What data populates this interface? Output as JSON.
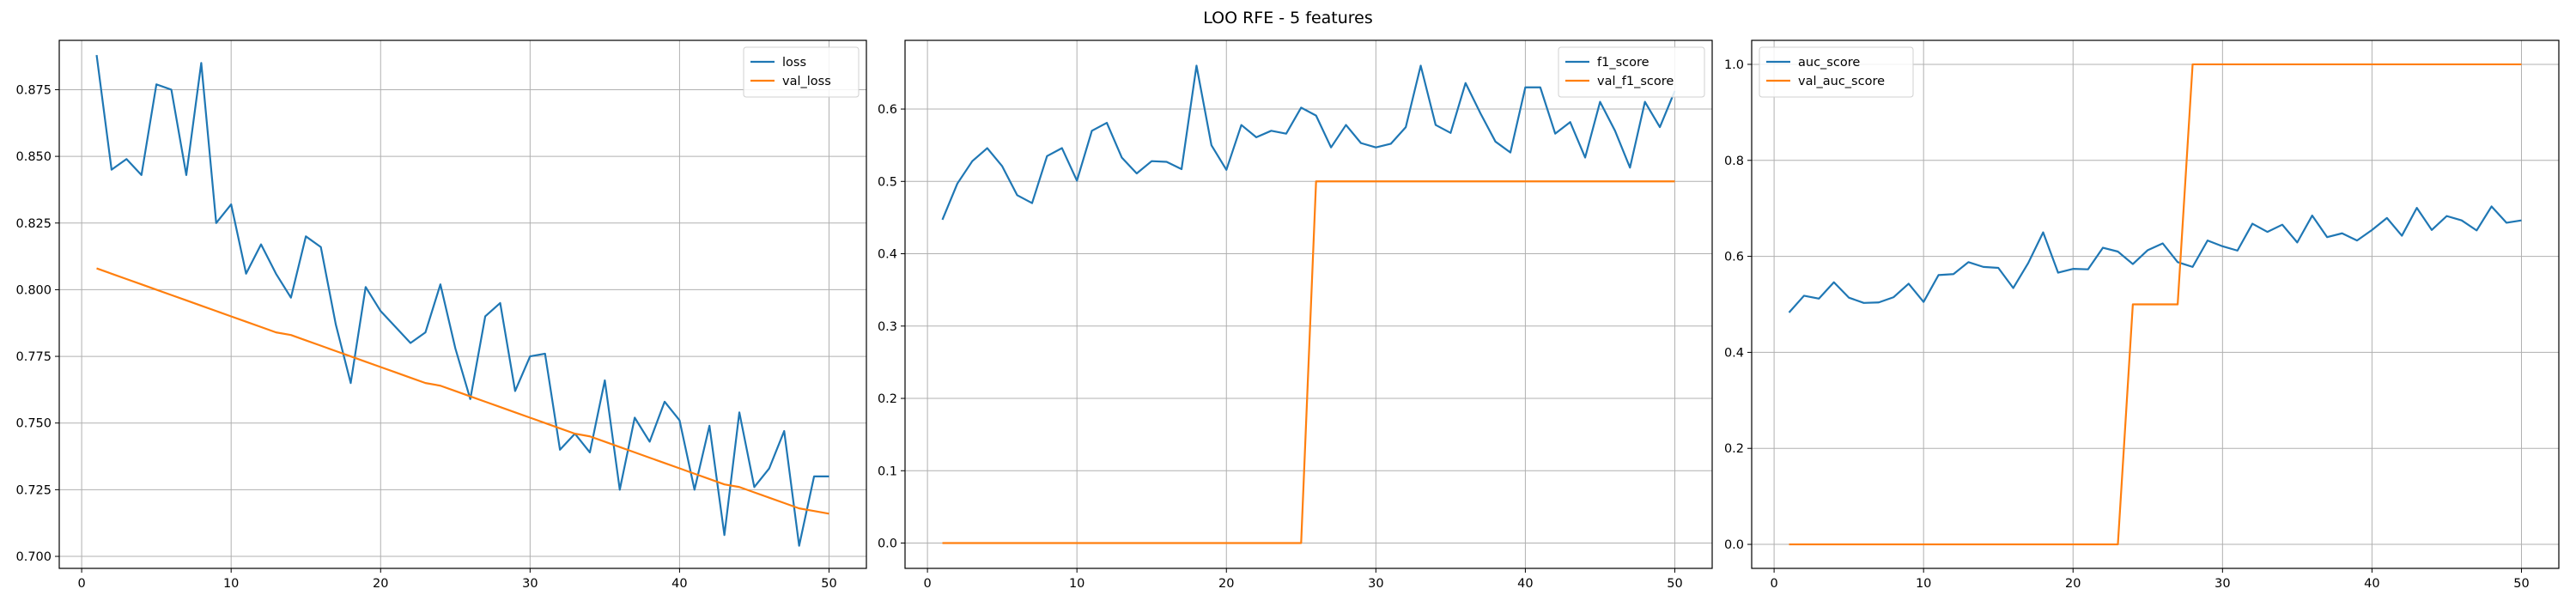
{
  "figure": {
    "title": "LOO RFE - 5 features"
  },
  "chart_data": [
    {
      "type": "line",
      "title": "",
      "xlabel": "",
      "ylabel": "",
      "grid": true,
      "legend_position": "top-right",
      "xlim": [
        -1.5,
        52.5
      ],
      "ylim": [
        0.6955,
        0.8935
      ],
      "xticks": [
        0,
        10,
        20,
        30,
        40,
        50
      ],
      "xtick_labels": [
        "0",
        "10",
        "20",
        "30",
        "40",
        "50"
      ],
      "yticks": [
        0.7,
        0.725,
        0.75,
        0.775,
        0.8,
        0.825,
        0.85,
        0.875
      ],
      "ytick_labels": [
        "0.700",
        "0.725",
        "0.750",
        "0.775",
        "0.800",
        "0.825",
        "0.850",
        "0.875"
      ],
      "x": [
        1,
        2,
        3,
        4,
        5,
        6,
        7,
        8,
        9,
        10,
        11,
        12,
        13,
        14,
        15,
        16,
        17,
        18,
        19,
        20,
        21,
        22,
        23,
        24,
        25,
        26,
        27,
        28,
        29,
        30,
        31,
        32,
        33,
        34,
        35,
        36,
        37,
        38,
        39,
        40,
        41,
        42,
        43,
        44,
        45,
        46,
        47,
        48,
        49,
        50
      ],
      "series": [
        {
          "name": "loss",
          "color": "#1f77b4",
          "values": [
            0.888,
            0.845,
            0.849,
            0.843,
            0.877,
            0.875,
            0.843,
            0.885,
            0.825,
            0.832,
            0.806,
            0.817,
            0.806,
            0.797,
            0.82,
            0.816,
            0.787,
            0.765,
            0.801,
            0.792,
            0.786,
            0.78,
            0.784,
            0.802,
            0.778,
            0.759,
            0.79,
            0.795,
            0.762,
            0.775,
            0.776,
            0.74,
            0.746,
            0.739,
            0.766,
            0.725,
            0.752,
            0.743,
            0.758,
            0.751,
            0.725,
            0.749,
            0.708,
            0.754,
            0.726,
            0.733,
            0.747,
            0.704,
            0.73,
            0.73
          ]
        },
        {
          "name": "val_loss",
          "color": "#ff7f0e",
          "values": [
            0.808,
            0.806,
            0.804,
            0.802,
            0.8,
            0.798,
            0.796,
            0.794,
            0.792,
            0.79,
            0.788,
            0.786,
            0.784,
            0.783,
            0.781,
            0.779,
            0.777,
            0.775,
            0.773,
            0.771,
            0.769,
            0.767,
            0.765,
            0.764,
            0.762,
            0.76,
            0.758,
            0.756,
            0.754,
            0.752,
            0.75,
            0.748,
            0.746,
            0.745,
            0.743,
            0.741,
            0.739,
            0.737,
            0.735,
            0.733,
            0.731,
            0.729,
            0.727,
            0.726,
            0.724,
            0.722,
            0.72,
            0.718,
            0.717,
            0.716
          ]
        }
      ]
    },
    {
      "type": "line",
      "title": "",
      "xlabel": "",
      "ylabel": "",
      "grid": true,
      "legend_position": "top-right",
      "xlim": [
        -1.5,
        52.5
      ],
      "ylim": [
        -0.035,
        0.695
      ],
      "xticks": [
        0,
        10,
        20,
        30,
        40,
        50
      ],
      "xtick_labels": [
        "0",
        "10",
        "20",
        "30",
        "40",
        "50"
      ],
      "yticks": [
        0.0,
        0.1,
        0.2,
        0.3,
        0.4,
        0.5,
        0.6
      ],
      "ytick_labels": [
        "0.0",
        "0.1",
        "0.2",
        "0.3",
        "0.4",
        "0.5",
        "0.6"
      ],
      "x": [
        1,
        2,
        3,
        4,
        5,
        6,
        7,
        8,
        9,
        10,
        11,
        12,
        13,
        14,
        15,
        16,
        17,
        18,
        19,
        20,
        21,
        22,
        23,
        24,
        25,
        26,
        27,
        28,
        29,
        30,
        31,
        32,
        33,
        34,
        35,
        36,
        37,
        38,
        39,
        40,
        41,
        42,
        43,
        44,
        45,
        46,
        47,
        48,
        49,
        50
      ],
      "series": [
        {
          "name": "f1_score",
          "color": "#1f77b4",
          "values": [
            0.447,
            0.497,
            0.528,
            0.546,
            0.521,
            0.481,
            0.47,
            0.535,
            0.546,
            0.501,
            0.57,
            0.581,
            0.533,
            0.511,
            0.528,
            0.527,
            0.517,
            0.66,
            0.55,
            0.516,
            0.578,
            0.561,
            0.57,
            0.566,
            0.602,
            0.591,
            0.547,
            0.578,
            0.553,
            0.547,
            0.552,
            0.575,
            0.66,
            0.578,
            0.567,
            0.636,
            0.594,
            0.555,
            0.54,
            0.63,
            0.63,
            0.566,
            0.582,
            0.533,
            0.61,
            0.57,
            0.519,
            0.61,
            0.575,
            0.625
          ]
        },
        {
          "name": "val_f1_score",
          "color": "#ff7f0e",
          "values": [
            0,
            0,
            0,
            0,
            0,
            0,
            0,
            0,
            0,
            0,
            0,
            0,
            0,
            0,
            0,
            0,
            0,
            0,
            0,
            0,
            0,
            0,
            0,
            0,
            0,
            0.5,
            0.5,
            0.5,
            0.5,
            0.5,
            0.5,
            0.5,
            0.5,
            0.5,
            0.5,
            0.5,
            0.5,
            0.5,
            0.5,
            0.5,
            0.5,
            0.5,
            0.5,
            0.5,
            0.5,
            0.5,
            0.5,
            0.5,
            0.5,
            0.5
          ]
        }
      ]
    },
    {
      "type": "line",
      "title": "",
      "xlabel": "",
      "ylabel": "",
      "grid": true,
      "legend_position": "top-left",
      "xlim": [
        -1.5,
        52.5
      ],
      "ylim": [
        -0.05,
        1.05
      ],
      "xticks": [
        0,
        10,
        20,
        30,
        40,
        50
      ],
      "xtick_labels": [
        "0",
        "10",
        "20",
        "30",
        "40",
        "50"
      ],
      "yticks": [
        0.0,
        0.2,
        0.4,
        0.6,
        0.8,
        1.0
      ],
      "ytick_labels": [
        "0.0",
        "0.2",
        "0.4",
        "0.6",
        "0.8",
        "1.0"
      ],
      "x": [
        1,
        2,
        3,
        4,
        5,
        6,
        7,
        8,
        9,
        10,
        11,
        12,
        13,
        14,
        15,
        16,
        17,
        18,
        19,
        20,
        21,
        22,
        23,
        24,
        25,
        26,
        27,
        28,
        29,
        30,
        31,
        32,
        33,
        34,
        35,
        36,
        37,
        38,
        39,
        40,
        41,
        42,
        43,
        44,
        45,
        46,
        47,
        48,
        49,
        50
      ],
      "series": [
        {
          "name": "auc_score",
          "color": "#1f77b4",
          "values": [
            0.483,
            0.518,
            0.512,
            0.546,
            0.514,
            0.503,
            0.504,
            0.515,
            0.543,
            0.505,
            0.561,
            0.563,
            0.588,
            0.578,
            0.576,
            0.534,
            0.586,
            0.65,
            0.566,
            0.574,
            0.573,
            0.618,
            0.61,
            0.584,
            0.613,
            0.627,
            0.588,
            0.578,
            0.633,
            0.621,
            0.612,
            0.668,
            0.651,
            0.666,
            0.629,
            0.685,
            0.64,
            0.648,
            0.633,
            0.655,
            0.68,
            0.643,
            0.701,
            0.655,
            0.684,
            0.675,
            0.654,
            0.704,
            0.67,
            0.675
          ]
        },
        {
          "name": "val_auc_score",
          "color": "#ff7f0e",
          "values": [
            0,
            0,
            0,
            0,
            0,
            0,
            0,
            0,
            0,
            0,
            0,
            0,
            0,
            0,
            0,
            0,
            0,
            0,
            0,
            0,
            0,
            0,
            0,
            0.5,
            0.5,
            0.5,
            0.5,
            1,
            1,
            1,
            1,
            1,
            1,
            1,
            1,
            1,
            1,
            1,
            1,
            1,
            1,
            1,
            1,
            1,
            1,
            1,
            1,
            1,
            1,
            1
          ]
        }
      ]
    }
  ]
}
